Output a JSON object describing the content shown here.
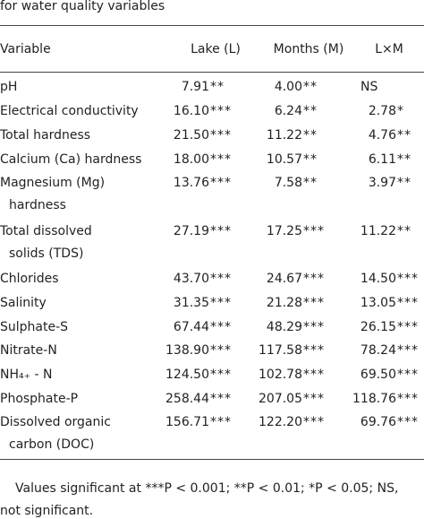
{
  "caption": "for water quality variables",
  "table": {
    "header": [
      "Variable",
      "Lake (L)",
      "Months (M)",
      "L×M"
    ],
    "rows": [
      {
        "variable": [
          "pH"
        ],
        "cells": [
          {
            "value": "7.91",
            "sig": "**"
          },
          {
            "value": "4.00",
            "sig": "**"
          },
          {
            "value": "NS"
          }
        ]
      },
      {
        "variable": [
          "Electrical conductivity"
        ],
        "cells": [
          {
            "value": "16.10",
            "sig": "***"
          },
          {
            "value": "6.24",
            "sig": "**"
          },
          {
            "value": "2.78",
            "sig": "*"
          }
        ]
      },
      {
        "variable": [
          "Total hardness"
        ],
        "cells": [
          {
            "value": "21.50",
            "sig": "***"
          },
          {
            "value": "11.22",
            "sig": "**"
          },
          {
            "value": "4.76",
            "sig": "**"
          }
        ]
      },
      {
        "variable": [
          "Calcium (Ca) hardness"
        ],
        "cells": [
          {
            "value": "18.00",
            "sig": "***"
          },
          {
            "value": "10.57",
            "sig": "**"
          },
          {
            "value": "6.11",
            "sig": "**"
          }
        ]
      },
      {
        "variable": [
          "Magnesium (Mg)",
          "hardness"
        ],
        "cells": [
          {
            "value": "13.76",
            "sig": "***"
          },
          {
            "value": "7.58",
            "sig": "**"
          },
          {
            "value": "3.97",
            "sig": "**"
          }
        ]
      },
      {
        "variable": [
          "Total dissolved",
          "solids (TDS)"
        ],
        "cells": [
          {
            "value": "27.19",
            "sig": "***"
          },
          {
            "value": "17.25",
            "sig": "***"
          },
          {
            "value": "11.22",
            "sig": "**"
          }
        ]
      },
      {
        "variable": [
          "Chlorides"
        ],
        "cells": [
          {
            "value": "43.70",
            "sig": "***"
          },
          {
            "value": "24.67",
            "sig": "***"
          },
          {
            "value": "14.50",
            "sig": "***"
          }
        ]
      },
      {
        "variable": [
          "Salinity"
        ],
        "cells": [
          {
            "value": "31.35",
            "sig": "***"
          },
          {
            "value": "21.28",
            "sig": "***"
          },
          {
            "value": "13.05",
            "sig": "***"
          }
        ]
      },
      {
        "variable": [
          "Sulphate-S"
        ],
        "cells": [
          {
            "value": "67.44",
            "sig": "***"
          },
          {
            "value": "48.29",
            "sig": "***"
          },
          {
            "value": "26.15",
            "sig": "***"
          }
        ]
      },
      {
        "variable": [
          "Nitrate-N"
        ],
        "cells": [
          {
            "value": "138.90",
            "sig": "***"
          },
          {
            "value": "117.58",
            "sig": "***"
          },
          {
            "value": "78.24",
            "sig": "***"
          }
        ]
      },
      {
        "variable": [
          "NH₄₊ - N"
        ],
        "cells": [
          {
            "value": "124.50",
            "sig": "***"
          },
          {
            "value": "102.78",
            "sig": "***"
          },
          {
            "value": "69.50",
            "sig": "***"
          }
        ]
      },
      {
        "variable": [
          "Phosphate-P"
        ],
        "cells": [
          {
            "value": "258.44",
            "sig": "***"
          },
          {
            "value": "207.05",
            "sig": "***"
          },
          {
            "value": "118.76",
            "sig": "***"
          }
        ]
      },
      {
        "variable": [
          "Dissolved organic",
          "carbon (DOC)"
        ],
        "cells": [
          {
            "value": "156.71",
            "sig": "***"
          },
          {
            "value": "122.20",
            "sig": "***"
          },
          {
            "value": "69.76",
            "sig": "***"
          }
        ]
      }
    ]
  },
  "footnote": [
    "Values significant at ***P < 0.001; **P < 0.01; *P < 0.05; NS,",
    "not significant."
  ]
}
